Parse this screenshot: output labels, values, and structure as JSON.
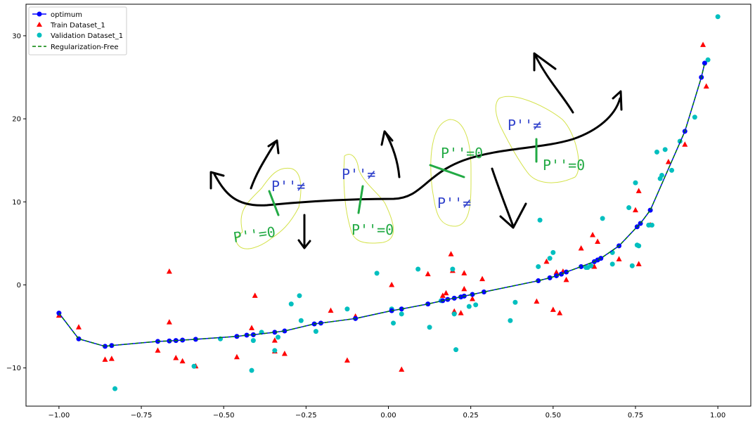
{
  "chart_data": {
    "type": "line",
    "title": "",
    "xlabel": "",
    "ylabel": "",
    "xlim": [
      -1.1,
      1.1
    ],
    "ylim": [
      -14.6,
      33.8
    ],
    "xticks": [
      -1.0,
      -0.75,
      -0.5,
      -0.25,
      0.0,
      0.25,
      0.5,
      0.75,
      1.0
    ],
    "xtick_labels": [
      "−1.00",
      "−0.75",
      "−0.50",
      "−0.25",
      "0.00",
      "0.25",
      "0.50",
      "0.75",
      "1.00"
    ],
    "yticks": [
      -10,
      0,
      10,
      20,
      30
    ],
    "ytick_labels": [
      "−10",
      "0",
      "10",
      "20",
      "30"
    ],
    "grid": false,
    "legend": {
      "location": "top-left",
      "entries": [
        {
          "label": "optimum",
          "style": "line-circle",
          "color": "#0000ff"
        },
        {
          "label": "Train Dataset_1",
          "style": "triangle",
          "color": "#ff0000"
        },
        {
          "label": "Validation Dataset_1",
          "style": "circle",
          "color": "#00bfbf"
        },
        {
          "label": "Regularization-Free",
          "style": "dashed",
          "color": "#008000"
        }
      ]
    },
    "series": [
      {
        "name": "optimum",
        "marker": "circle",
        "color": "#0000ff",
        "x": [
          -1.0,
          -0.94,
          -0.86,
          -0.84,
          -0.7,
          -0.665,
          -0.645,
          -0.625,
          -0.585,
          -0.46,
          -0.43,
          -0.41,
          -0.345,
          -0.315,
          -0.225,
          -0.205,
          -0.1,
          0.01,
          0.04,
          0.12,
          0.165,
          0.18,
          0.2,
          0.22,
          0.23,
          0.255,
          0.29,
          0.455,
          0.49,
          0.51,
          0.525,
          0.54,
          0.585,
          0.625,
          0.635,
          0.645,
          0.7,
          0.755,
          0.765,
          0.795,
          0.9,
          0.95,
          0.96
        ],
        "y": [
          -3.4,
          -6.5,
          -7.4,
          -7.3,
          -6.8,
          -6.75,
          -6.7,
          -6.65,
          -6.55,
          -6.2,
          -6.05,
          -6.0,
          -5.7,
          -5.55,
          -4.7,
          -4.6,
          -4.05,
          -3.1,
          -2.9,
          -2.3,
          -1.9,
          -1.75,
          -1.6,
          -1.45,
          -1.35,
          -1.15,
          -0.85,
          0.5,
          0.85,
          1.1,
          1.3,
          1.55,
          2.2,
          2.8,
          3.0,
          3.2,
          4.7,
          7.0,
          7.4,
          9.0,
          18.5,
          25.0,
          26.7
        ]
      },
      {
        "name": "Train Dataset_1",
        "marker": "triangle",
        "color": "#ff0000",
        "x": [
          -1.0,
          -0.94,
          -0.86,
          -0.84,
          -0.7,
          -0.665,
          -0.665,
          -0.645,
          -0.625,
          -0.585,
          -0.46,
          -0.415,
          -0.405,
          -0.345,
          -0.345,
          -0.315,
          -0.175,
          -0.125,
          -0.1,
          0.01,
          0.04,
          0.12,
          0.165,
          0.175,
          0.19,
          0.195,
          0.2,
          0.22,
          0.23,
          0.23,
          0.255,
          0.285,
          0.45,
          0.48,
          0.5,
          0.51,
          0.52,
          0.53,
          0.54,
          0.585,
          0.62,
          0.625,
          0.635,
          0.7,
          0.75,
          0.76,
          0.76,
          0.795,
          0.85,
          0.9,
          0.955,
          0.965
        ],
        "y": [
          -3.7,
          -5.1,
          -9.0,
          -8.9,
          -7.9,
          1.6,
          -4.5,
          -8.8,
          -9.2,
          -9.8,
          -8.7,
          -5.2,
          -1.3,
          -6.7,
          -8.0,
          -8.3,
          -3.1,
          -9.1,
          -3.8,
          0.0,
          -10.2,
          1.3,
          -1.3,
          -1.0,
          3.7,
          1.7,
          -3.2,
          -3.4,
          -0.5,
          1.4,
          -1.7,
          0.7,
          -2.0,
          2.8,
          -3.0,
          1.5,
          -3.4,
          1.6,
          0.6,
          4.4,
          6.0,
          2.2,
          5.2,
          3.1,
          9.0,
          11.3,
          2.5,
          7.2,
          14.8,
          16.9,
          28.9,
          23.9
        ]
      },
      {
        "name": "Validation Dataset_1",
        "marker": "circle",
        "color": "#00bfbf",
        "x": [
          -0.83,
          -0.59,
          -0.51,
          -0.415,
          -0.41,
          -0.385,
          -0.345,
          -0.335,
          -0.295,
          -0.27,
          -0.265,
          -0.22,
          -0.125,
          -0.035,
          0.01,
          0.015,
          0.04,
          0.09,
          0.125,
          0.16,
          0.195,
          0.2,
          0.205,
          0.245,
          0.265,
          0.37,
          0.385,
          0.455,
          0.46,
          0.49,
          0.5,
          0.6,
          0.605,
          0.615,
          0.65,
          0.68,
          0.68,
          0.73,
          0.74,
          0.75,
          0.755,
          0.76,
          0.79,
          0.8,
          0.815,
          0.825,
          0.83,
          0.84,
          0.86,
          0.885,
          0.93,
          0.97,
          1.0
        ],
        "y": [
          -12.5,
          -9.8,
          -6.5,
          -10.3,
          -6.7,
          -5.7,
          -7.9,
          -6.3,
          -2.3,
          -1.3,
          -4.3,
          -5.6,
          -2.9,
          1.4,
          -2.9,
          -4.6,
          -3.5,
          1.9,
          -5.1,
          -1.9,
          1.9,
          -3.5,
          -7.8,
          -2.6,
          -2.4,
          -4.3,
          -2.1,
          2.2,
          7.8,
          3.2,
          3.9,
          2.1,
          2.1,
          2.3,
          8.0,
          2.5,
          3.9,
          9.3,
          2.3,
          12.3,
          4.8,
          4.7,
          7.2,
          7.2,
          16.0,
          12.8,
          13.2,
          16.3,
          13.8,
          17.3,
          20.2,
          27.1,
          32.3
        ]
      },
      {
        "name": "Regularization-Free",
        "style": "dashed",
        "color": "#008000",
        "x": [
          -1.0,
          -0.94,
          -0.86,
          -0.84,
          -0.7,
          -0.665,
          -0.645,
          -0.625,
          -0.585,
          -0.46,
          -0.43,
          -0.41,
          -0.345,
          -0.315,
          -0.225,
          -0.205,
          -0.1,
          0.01,
          0.04,
          0.12,
          0.165,
          0.18,
          0.2,
          0.22,
          0.23,
          0.255,
          0.29,
          0.455,
          0.49,
          0.51,
          0.525,
          0.54,
          0.585,
          0.625,
          0.635,
          0.645,
          0.7,
          0.755,
          0.765,
          0.795,
          0.9,
          0.95,
          0.96
        ],
        "y": [
          -3.4,
          -6.5,
          -7.4,
          -7.3,
          -6.8,
          -6.75,
          -6.7,
          -6.65,
          -6.55,
          -6.2,
          -6.05,
          -6.0,
          -5.7,
          -5.55,
          -4.7,
          -4.6,
          -4.05,
          -3.1,
          -2.9,
          -2.3,
          -1.9,
          -1.75,
          -1.6,
          -1.45,
          -1.35,
          -1.15,
          -0.85,
          0.5,
          0.85,
          1.1,
          1.3,
          1.55,
          2.2,
          2.8,
          3.0,
          3.2,
          4.7,
          7.0,
          7.4,
          9.0,
          18.5,
          25.0,
          26.7
        ]
      }
    ],
    "annotations": [
      {
        "type": "handwritten-curve",
        "color": "#000000",
        "description": "black freehand curve with arrows"
      },
      {
        "type": "handwritten-text",
        "text": "P''=0"
      },
      {
        "type": "handwritten-text",
        "text": "P''≠"
      },
      {
        "type": "handwritten-text",
        "text": "P''≠"
      },
      {
        "type": "handwritten-text",
        "text": "P''=0"
      },
      {
        "type": "handwritten-text",
        "text": "P''=0"
      },
      {
        "type": "handwritten-text",
        "text": "P''≠"
      },
      {
        "type": "handwritten-text",
        "text": "P''≠"
      },
      {
        "type": "handwritten-text",
        "text": "P''=0"
      }
    ]
  }
}
